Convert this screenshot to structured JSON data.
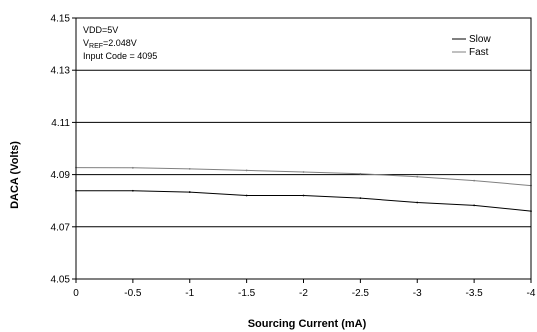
{
  "chart_data": {
    "type": "line",
    "x": [
      0,
      -0.5,
      -1,
      -1.5,
      -2,
      -2.5,
      -3,
      -3.5,
      -4
    ],
    "x_tick_labels": [
      "0",
      "-0.5",
      "-1",
      "-1.5",
      "-2",
      "-2.5",
      "-3",
      "-3.5",
      "-4"
    ],
    "xlim": [
      0,
      -4
    ],
    "ylim": [
      4.05,
      4.15
    ],
    "y_ticks": [
      4.05,
      4.07,
      4.09,
      4.11,
      4.13,
      4.15
    ],
    "y_tick_labels": [
      "4.05",
      "4.07",
      "4.09",
      "4.11",
      "4.13",
      "4.15"
    ],
    "xlabel": "Sourcing Current (mA)",
    "ylabel": "DACA (Volts)",
    "title": "",
    "grid": "horizontal",
    "legend_position": "top-right",
    "annotations": {
      "vdd": "VDD=5V",
      "vref_prefix": "V",
      "vref_sub": "REF",
      "vref_value": "=2.048V",
      "input_code": "Input Code = 4095"
    },
    "series": [
      {
        "name": "Slow",
        "color": "#000000",
        "values": [
          4.0838,
          4.0838,
          4.0833,
          4.082,
          4.082,
          4.081,
          4.0793,
          4.0782,
          4.076
        ]
      },
      {
        "name": "Fast",
        "color": "#808080",
        "values": [
          4.0927,
          4.0926,
          4.0922,
          4.0916,
          4.091,
          4.0903,
          4.0892,
          4.0877,
          4.0858
        ]
      }
    ]
  }
}
